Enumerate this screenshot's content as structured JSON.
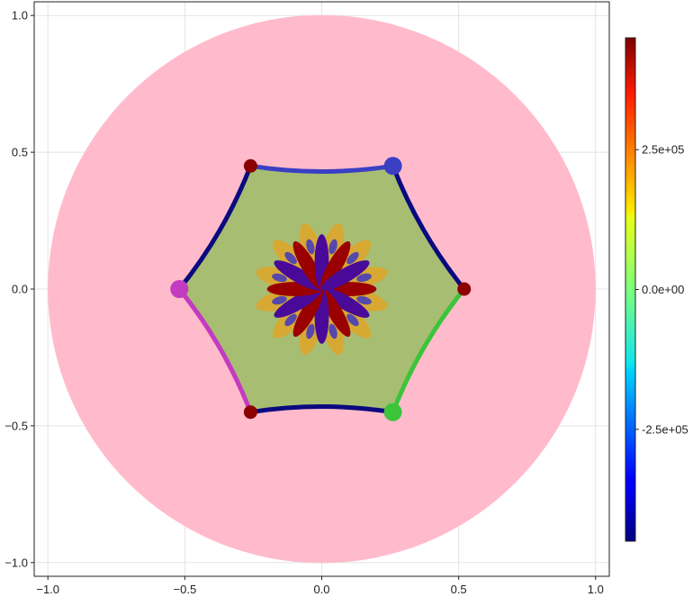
{
  "chart_data": {
    "type": "heatmap",
    "title": "",
    "xlabel": "",
    "ylabel": "",
    "xlim": [
      -1.05,
      1.05
    ],
    "ylim": [
      -1.05,
      1.05
    ],
    "grid": true,
    "x_ticks": [
      -1.0,
      -0.5,
      0.0,
      0.5,
      1.0
    ],
    "x_tick_labels": [
      "−1.0",
      "−0.5",
      "0.0",
      "0.5",
      "1.0"
    ],
    "y_ticks": [
      -1.0,
      -0.5,
      0.0,
      0.5,
      1.0
    ],
    "y_tick_labels": [
      "−1.0",
      "−0.5",
      "0.0",
      "0.5",
      "1.0"
    ],
    "disk": {
      "center": [
        0,
        0
      ],
      "radius": 1.0,
      "color": "#ffb7c9"
    },
    "hexagon": {
      "fill": "#a7bd72",
      "vertices": [
        [
          0.52,
          0.0
        ],
        [
          0.26,
          0.45
        ],
        [
          -0.26,
          0.45
        ],
        [
          -0.52,
          0.0
        ],
        [
          -0.26,
          -0.45
        ],
        [
          0.26,
          -0.45
        ]
      ]
    },
    "edges": [
      {
        "from": [
          0.26,
          0.45
        ],
        "to": [
          -0.26,
          0.45
        ],
        "color": "#3a3fc4",
        "width": 5
      },
      {
        "from": [
          -0.26,
          0.45
        ],
        "to": [
          -0.52,
          0.0
        ],
        "color": "#0a0a80",
        "width": 5
      },
      {
        "from": [
          -0.52,
          0.0
        ],
        "to": [
          -0.26,
          -0.45
        ],
        "color": "#c43ac0",
        "width": 5
      },
      {
        "from": [
          -0.26,
          -0.45
        ],
        "to": [
          0.26,
          -0.45
        ],
        "color": "#0a0a80",
        "width": 5
      },
      {
        "from": [
          0.26,
          -0.45
        ],
        "to": [
          0.52,
          0.0
        ],
        "color": "#3cc43a",
        "width": 5
      },
      {
        "from": [
          0.52,
          0.0
        ],
        "to": [
          0.26,
          0.45
        ],
        "color": "#0a0a80",
        "width": 5
      }
    ],
    "markers": [
      {
        "x": 0.26,
        "y": 0.45,
        "color": "#3a3fc4",
        "size": "large"
      },
      {
        "x": -0.52,
        "y": 0.0,
        "color": "#c43ac0",
        "size": "large"
      },
      {
        "x": 0.26,
        "y": -0.45,
        "color": "#3cc43a",
        "size": "large"
      },
      {
        "x": -0.26,
        "y": 0.45,
        "color": "#8b0000",
        "size": "small"
      },
      {
        "x": 0.52,
        "y": 0.0,
        "color": "#8b0000",
        "size": "small"
      },
      {
        "x": -0.26,
        "y": -0.45,
        "color": "#8b0000",
        "size": "small"
      }
    ],
    "field": {
      "petals": 12,
      "extent": 0.2,
      "colormap": "jet"
    },
    "colorbar": {
      "colormap": "jet",
      "range": [
        -450000,
        450000
      ],
      "ticks": [
        -250000,
        0,
        250000
      ],
      "tick_labels": [
        "-2.5e+05",
        "0.0e+00",
        "2.5e+05"
      ]
    }
  }
}
